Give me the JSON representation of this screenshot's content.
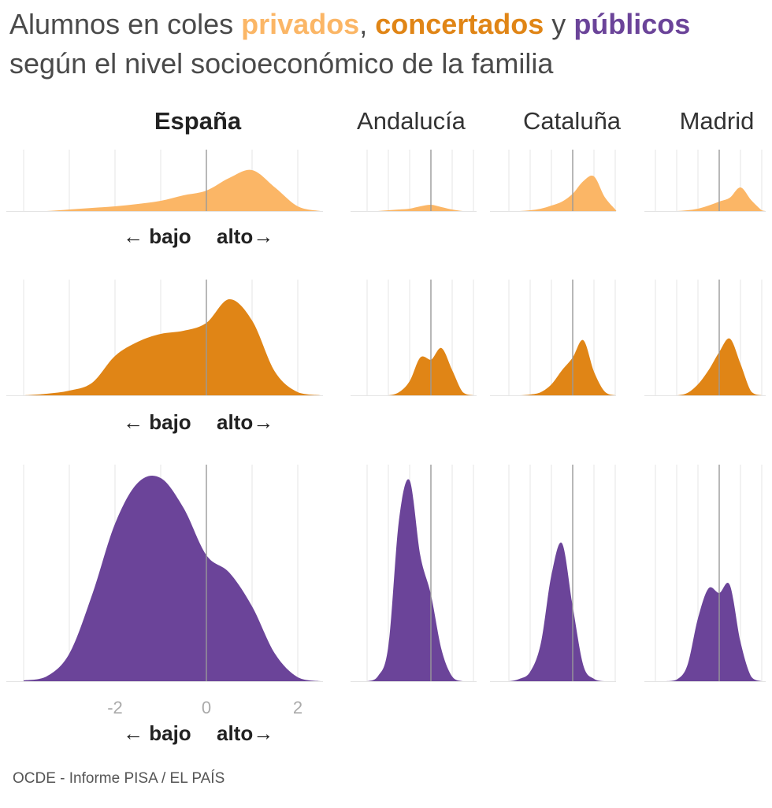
{
  "title": {
    "line1_prefix": "Alumnos en coles ",
    "privados": "privados",
    "sep1": ", ",
    "concertados": "concertados",
    "sep2": " y ",
    "publicos": "públicos",
    "line2": "según el nivel socioeconómico de la familia"
  },
  "source": "OCDE - Informe PISA / EL PAÍS",
  "colors": {
    "privados": "#fbb666",
    "concertados": "#e08516",
    "publicos": "#6b4499",
    "grid": "#e6e6e6",
    "zero_line": "#999999",
    "axis_text": "#aaaaaa"
  },
  "direction_label": {
    "low": "← bajo",
    "high": "alto→"
  },
  "chart_data": {
    "type": "area",
    "subtype": "ridgeline-density",
    "x_variable": "índice socioeconómico",
    "x_ticks": [
      -2,
      0,
      2
    ],
    "xlim": [
      -4.4,
      2.6
    ],
    "regions": [
      "España",
      "Andalucía",
      "Cataluña",
      "Madrid"
    ],
    "highlighted_region": "España",
    "x": [
      -4.0,
      -3.5,
      -3.0,
      -2.5,
      -2.0,
      -1.5,
      -1.0,
      -0.5,
      0.0,
      0.5,
      1.0,
      1.5,
      2.0,
      2.5
    ],
    "series": [
      {
        "name": "privados",
        "region": "España",
        "values": [
          0,
          0,
          2,
          4,
          6,
          9,
          13,
          20,
          26,
          42,
          52,
          30,
          6,
          0
        ]
      },
      {
        "name": "privados",
        "region": "Andalucía",
        "values": [
          0,
          0,
          0,
          0,
          1,
          2,
          3,
          6,
          8,
          5,
          2,
          0,
          0,
          0
        ]
      },
      {
        "name": "privados",
        "region": "Cataluña",
        "values": [
          0,
          0,
          0,
          0,
          1,
          3,
          7,
          12,
          22,
          38,
          44,
          18,
          2,
          0
        ]
      },
      {
        "name": "privados",
        "region": "Madrid",
        "values": [
          0,
          0,
          0,
          0,
          0,
          1,
          3,
          7,
          12,
          17,
          30,
          14,
          1,
          0
        ]
      },
      {
        "name": "concertados",
        "region": "España",
        "values": [
          0,
          2,
          6,
          16,
          50,
          68,
          78,
          82,
          92,
          122,
          95,
          30,
          4,
          0
        ]
      },
      {
        "name": "concertados",
        "region": "Andalucía",
        "values": [
          0,
          0,
          0,
          0,
          0,
          4,
          18,
          48,
          45,
          60,
          32,
          4,
          0,
          0
        ]
      },
      {
        "name": "concertados",
        "region": "Cataluña",
        "values": [
          0,
          0,
          0,
          0,
          1,
          4,
          14,
          32,
          48,
          70,
          30,
          5,
          0,
          0
        ]
      },
      {
        "name": "concertados",
        "region": "Madrid",
        "values": [
          0,
          0,
          0,
          0,
          0,
          3,
          14,
          32,
          55,
          72,
          40,
          5,
          0,
          0
        ]
      },
      {
        "name": "públicos",
        "region": "España",
        "values": [
          1,
          6,
          35,
          110,
          200,
          252,
          258,
          220,
          160,
          138,
          95,
          35,
          5,
          0
        ]
      },
      {
        "name": "públicos",
        "region": "Andalucía",
        "values": [
          0,
          0,
          0,
          6,
          45,
          205,
          255,
          160,
          110,
          40,
          6,
          0,
          0,
          0
        ]
      },
      {
        "name": "públicos",
        "region": "Cataluña",
        "values": [
          0,
          0,
          0,
          3,
          12,
          48,
          135,
          175,
          95,
          20,
          3,
          0,
          0,
          0
        ]
      },
      {
        "name": "públicos",
        "region": "Madrid",
        "values": [
          0,
          0,
          0,
          0,
          2,
          20,
          80,
          118,
          112,
          122,
          50,
          6,
          0,
          0
        ]
      }
    ]
  }
}
